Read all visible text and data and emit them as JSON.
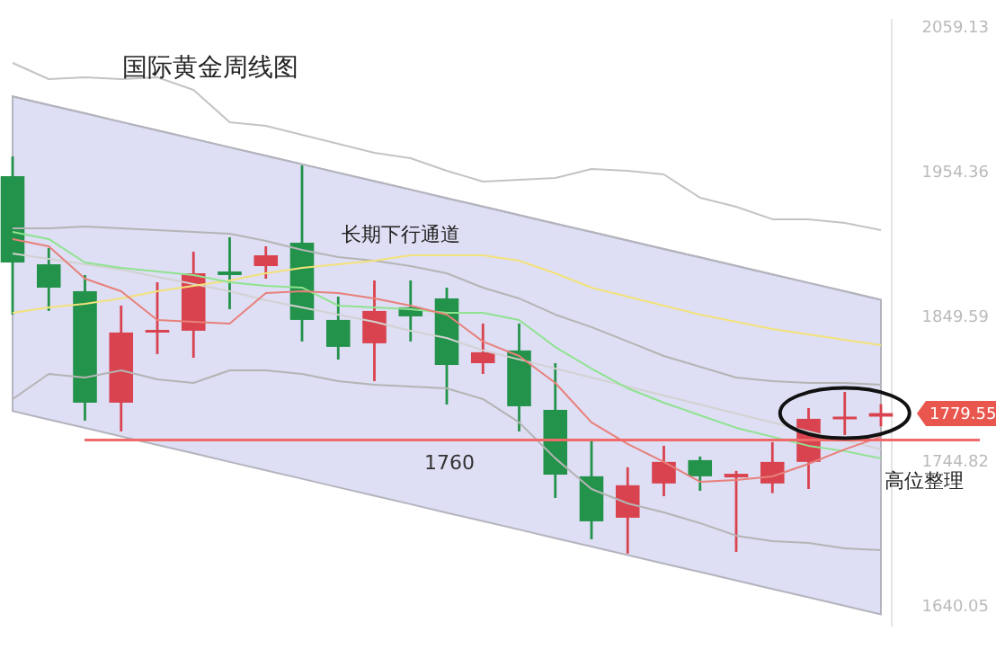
{
  "chart_data": {
    "type": "candlestick",
    "title": "国际黄金周线图",
    "categories": [
      null,
      null,
      null,
      null,
      null,
      null,
      null,
      null,
      null,
      null,
      null,
      null,
      null,
      null,
      null,
      null,
      null,
      null,
      null,
      null,
      null,
      null,
      null,
      null,
      null
    ],
    "ylim": [
      1625,
      2065
    ],
    "yticks": [
      1640.05,
      1744.82,
      1849.59,
      1954.36,
      2059.13
    ],
    "tick_labels": "y",
    "grid": false,
    "legend": false,
    "ref_lines": [
      {
        "axis": "y",
        "value": 1760,
        "label": "1760",
        "color": "#f06a6a"
      }
    ],
    "annotations": [
      "长期下行通道",
      "高位整理",
      "1779.55"
    ],
    "series": [
      {
        "type": "line",
        "color": "#b4b4be",
        "values": [
          2008.8,
          2002.7,
          1996.6,
          1990.4,
          1984.3,
          1978.2,
          1972.0,
          1965.9,
          1959.8,
          1953.6,
          1947.5,
          1941.4,
          1935.2,
          1929.1,
          1923.0,
          1916.8,
          1910.7,
          1904.6,
          1898.4,
          1892.3,
          1886.2,
          1880.0,
          1873.9,
          1867.8,
          1861.6
        ],
        "lower": [
          1781.0,
          1774.9,
          1768.8,
          1762.6,
          1756.5,
          1750.4,
          1744.2,
          1738.1,
          1732.0,
          1725.8,
          1719.7,
          1713.6,
          1707.4,
          1701.3,
          1695.2,
          1689.0,
          1682.9,
          1676.8,
          1670.6,
          1664.5,
          1658.4,
          1652.2,
          1646.1,
          1640.0,
          1633.8
        ],
        "upper": [
          2008.8,
          2002.7,
          1996.6,
          1990.4,
          1984.3,
          1978.2,
          1972.0,
          1965.9,
          1959.8,
          1953.6,
          1947.5,
          1941.4,
          1935.2,
          1929.1,
          1923.0,
          1916.8,
          1910.7,
          1904.6,
          1898.4,
          1892.3,
          1886.2,
          1880.0,
          1873.9,
          1867.8,
          1861.6
        ]
      },
      {
        "type": "line",
        "color": "#c4c4c4",
        "values": [
          2033.1,
          2021.4,
          2022.7,
          2021.4,
          2022.7,
          2013.6,
          1990.2,
          1987.6,
          1981.0,
          1974.5,
          1968.0,
          1964.1,
          1955.0,
          1947.2,
          1948.5,
          1949.8,
          1956.3,
          1955.0,
          1952.4,
          1935.5,
          1929.0,
          1919.9,
          1919.9,
          1917.3,
          1912.1
        ]
      },
      {
        "type": "line",
        "color": "#b4b4b4",
        "values": [
          1913.3,
          1913.3,
          1914.6,
          1913.3,
          1912.0,
          1910.7,
          1909.5,
          1904.2,
          1897.7,
          1892.5,
          1889.9,
          1886.0,
          1880.8,
          1870.4,
          1862.6,
          1850.9,
          1841.8,
          1831.4,
          1820.9,
          1813.1,
          1805.3,
          1802.7,
          1801.4,
          1801.4,
          1800.1
        ]
      },
      {
        "type": "line",
        "color": "#b4b4b4",
        "values": [
          1789.7,
          1807.9,
          1805.3,
          1810.5,
          1804.0,
          1801.4,
          1810.5,
          1810.5,
          1807.9,
          1802.7,
          1800.1,
          1798.8,
          1797.5,
          1789.7,
          1772.8,
          1746.8,
          1724.6,
          1714.2,
          1707.7,
          1699.9,
          1690.8,
          1686.9,
          1685.6,
          1681.7,
          1680.4
        ]
      },
      {
        "type": "line",
        "color": "#d2d2d2",
        "values": [
          1895.1,
          1891.2,
          1887.3,
          1883.4,
          1878.2,
          1873.0,
          1867.8,
          1861.3,
          1856.1,
          1850.9,
          1845.7,
          1839.2,
          1833.9,
          1824.9,
          1818.4,
          1811.8,
          1805.3,
          1798.8,
          1792.3,
          1785.8,
          1779.3,
          1772.8,
          1766.3,
          1759.8,
          1753.3
        ]
      },
      {
        "type": "line",
        "color": "#f2e27a",
        "values": [
          1852.2,
          1856.1,
          1858.7,
          1862.6,
          1867.8,
          1871.7,
          1875.6,
          1880.8,
          1884.7,
          1887.3,
          1889.9,
          1893.8,
          1893.8,
          1893.8,
          1889.9,
          1880.8,
          1870.4,
          1863.9,
          1857.4,
          1850.9,
          1845.7,
          1840.5,
          1836.6,
          1832.7,
          1828.8
        ]
      },
      {
        "type": "line",
        "color": "#8fe38f",
        "values": [
          1910.7,
          1905.6,
          1888.6,
          1884.7,
          1882.1,
          1879.5,
          1874.3,
          1871.7,
          1870.4,
          1857.4,
          1856.1,
          1854.8,
          1852.2,
          1852.2,
          1847.0,
          1827.4,
          1811.8,
          1797.5,
          1787.1,
          1778.0,
          1768.9,
          1762.4,
          1755.9,
          1752.0,
          1746.8
        ]
      },
      {
        "type": "line",
        "color": "#e8807a",
        "values": [
          1905.6,
          1900.3,
          1876.9,
          1867.8,
          1847.0,
          1845.7,
          1844.4,
          1866.5,
          1867.8,
          1866.5,
          1862.6,
          1857.4,
          1850.9,
          1831.4,
          1820.9,
          1801.4,
          1772.8,
          1757.2,
          1744.2,
          1729.8,
          1731.1,
          1733.7,
          1742.8,
          1753.3,
          1762.4
        ]
      },
      {
        "type": "candlestick",
        "colors": [
          "#23924a",
          "#23924a",
          "#23924a",
          "#d9434f",
          "#d9434f",
          "#d9434f",
          "#23924a",
          "#d9434f",
          "#23924a",
          "#23924a",
          "#d9434f",
          "#23924a",
          "#23924a",
          "#d9434f",
          "#23924a",
          "#23924a",
          "#23924a",
          "#d9434f",
          "#d9434f",
          "#23924a",
          "#d9434f",
          "#d9434f",
          "#d9434f",
          "#d9434f",
          "#d9434f"
        ],
        "ohlc": [
          [
            1951.1,
            1965.4,
            1850.9,
            1888.6
          ],
          [
            1887.3,
            1899.1,
            1853.5,
            1870.4
          ],
          [
            1867.8,
            1879.5,
            1774.1,
            1787.1
          ],
          [
            1787.1,
            1857.4,
            1766.3,
            1837.9
          ],
          [
            1838.4,
            1874.3,
            1822.3,
            1839.8
          ],
          [
            1839.2,
            1896.4,
            1819.6,
            1880.8
          ],
          [
            1882.1,
            1906.9,
            1854.8,
            1879.5
          ],
          [
            1886.0,
            1900.3,
            1876.9,
            1893.8
          ],
          [
            1902.9,
            1958.9,
            1831.4,
            1847.0
          ],
          [
            1847.0,
            1863.9,
            1818.3,
            1827.5
          ],
          [
            1830.1,
            1875.6,
            1802.7,
            1853.5
          ],
          [
            1856.1,
            1875.6,
            1831.4,
            1849.6
          ],
          [
            1862.6,
            1870.4,
            1785.8,
            1814.4
          ],
          [
            1815.7,
            1844.4,
            1807.9,
            1823.6
          ],
          [
            1824.9,
            1844.4,
            1766.3,
            1784.5
          ],
          [
            1781.9,
            1815.7,
            1718.1,
            1735.0
          ],
          [
            1733.8,
            1759.8,
            1688.2,
            1701.2
          ],
          [
            1703.8,
            1740.3,
            1677.8,
            1727.3
          ],
          [
            1728.6,
            1755.9,
            1719.4,
            1744.2
          ],
          [
            1745.5,
            1748.1,
            1723.3,
            1733.8
          ],
          [
            1733.0,
            1737.7,
            1679.1,
            1735.6
          ],
          [
            1728.6,
            1758.5,
            1721.6,
            1744.2
          ],
          [
            1744.2,
            1783.2,
            1724.6,
            1775.4
          ],
          [
            1775.5,
            1794.9,
            1763.7,
            1777.0
          ],
          [
            1777.0,
            1786.0,
            1770.0,
            1779.55
          ]
        ]
      }
    ]
  }
}
